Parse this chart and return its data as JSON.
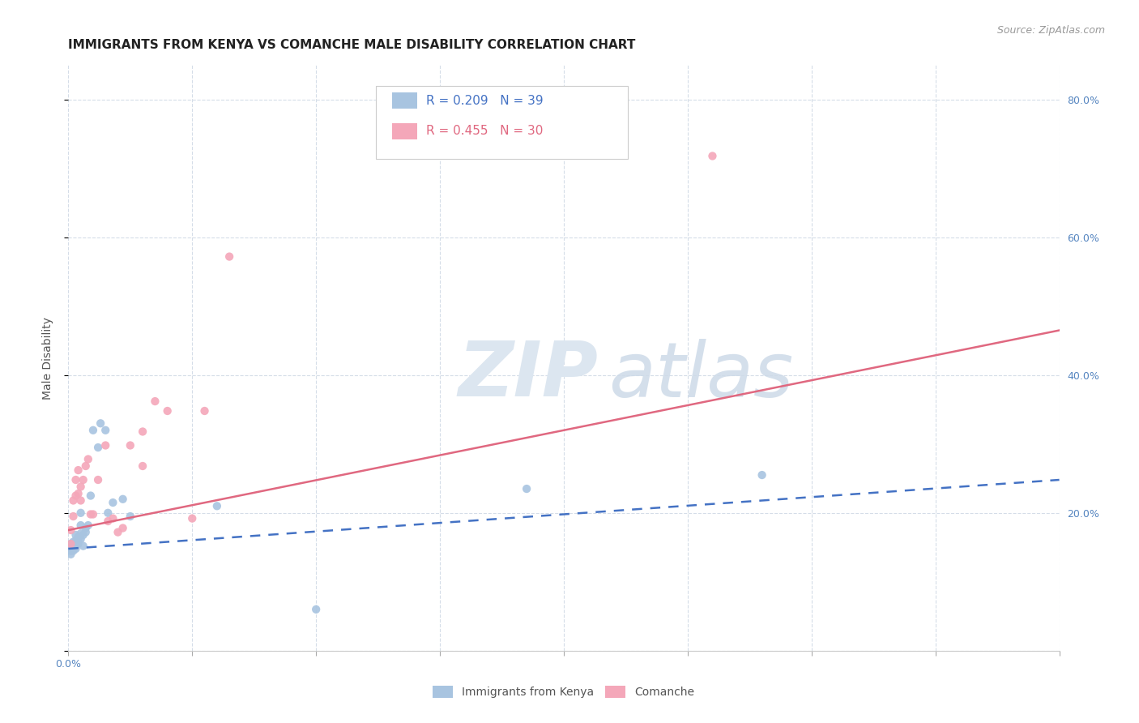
{
  "title": "IMMIGRANTS FROM KENYA VS COMANCHE MALE DISABILITY CORRELATION CHART",
  "source": "Source: ZipAtlas.com",
  "ylabel": "Male Disability",
  "xlim": [
    0.0,
    0.4
  ],
  "ylim": [
    0.0,
    0.85
  ],
  "x_ticks": [
    0.0,
    0.05,
    0.1,
    0.15,
    0.2,
    0.25,
    0.3,
    0.35,
    0.4
  ],
  "x_tick_labels_show": {
    "0.0": "0.0%",
    "0.40": "40.0%"
  },
  "y_ticks": [
    0.0,
    0.2,
    0.4,
    0.6,
    0.8
  ],
  "y_tick_labels_right": [
    "",
    "20.0%",
    "40.0%",
    "60.0%",
    "80.0%"
  ],
  "series": [
    {
      "name": "Immigrants from Kenya",
      "color": "#a8c4e0",
      "line_color": "#4472c4",
      "R": 0.209,
      "N": 39,
      "x": [
        0.001,
        0.001,
        0.001,
        0.001,
        0.001,
        0.001,
        0.002,
        0.002,
        0.002,
        0.002,
        0.003,
        0.003,
        0.003,
        0.003,
        0.004,
        0.004,
        0.004,
        0.005,
        0.005,
        0.005,
        0.005,
        0.006,
        0.006,
        0.007,
        0.007,
        0.008,
        0.009,
        0.01,
        0.012,
        0.013,
        0.015,
        0.016,
        0.018,
        0.022,
        0.025,
        0.06,
        0.1,
        0.185,
        0.28
      ],
      "y": [
        0.145,
        0.148,
        0.15,
        0.155,
        0.145,
        0.14,
        0.152,
        0.148,
        0.158,
        0.145,
        0.155,
        0.16,
        0.168,
        0.148,
        0.16,
        0.155,
        0.165,
        0.162,
        0.17,
        0.182,
        0.2,
        0.152,
        0.168,
        0.172,
        0.178,
        0.182,
        0.225,
        0.32,
        0.295,
        0.33,
        0.32,
        0.2,
        0.215,
        0.22,
        0.195,
        0.21,
        0.06,
        0.235,
        0.255
      ],
      "trend_x": [
        0.0,
        0.4
      ],
      "trend_y": [
        0.148,
        0.248
      ],
      "trend_dash": true
    },
    {
      "name": "Comanche",
      "color": "#f4a7b9",
      "line_color": "#e06880",
      "R": 0.455,
      "N": 30,
      "x": [
        0.001,
        0.001,
        0.002,
        0.002,
        0.003,
        0.003,
        0.004,
        0.004,
        0.005,
        0.005,
        0.006,
        0.007,
        0.008,
        0.009,
        0.01,
        0.012,
        0.015,
        0.016,
        0.018,
        0.02,
        0.022,
        0.025,
        0.03,
        0.03,
        0.035,
        0.04,
        0.05,
        0.055,
        0.065,
        0.26
      ],
      "y": [
        0.155,
        0.175,
        0.195,
        0.218,
        0.225,
        0.248,
        0.228,
        0.262,
        0.238,
        0.218,
        0.248,
        0.268,
        0.278,
        0.198,
        0.198,
        0.248,
        0.298,
        0.188,
        0.192,
        0.172,
        0.178,
        0.298,
        0.268,
        0.318,
        0.362,
        0.348,
        0.192,
        0.348,
        0.572,
        0.718
      ],
      "trend_x": [
        0.0,
        0.4
      ],
      "trend_y": [
        0.175,
        0.465
      ],
      "trend_dash": false
    }
  ],
  "title_fontsize": 11,
  "tick_fontsize": 9,
  "scatter_size": 55,
  "background_color": "#ffffff",
  "grid_color": "#d5dde8",
  "right_tick_color": "#5585c0",
  "bottom_tick_color": "#5585c0"
}
